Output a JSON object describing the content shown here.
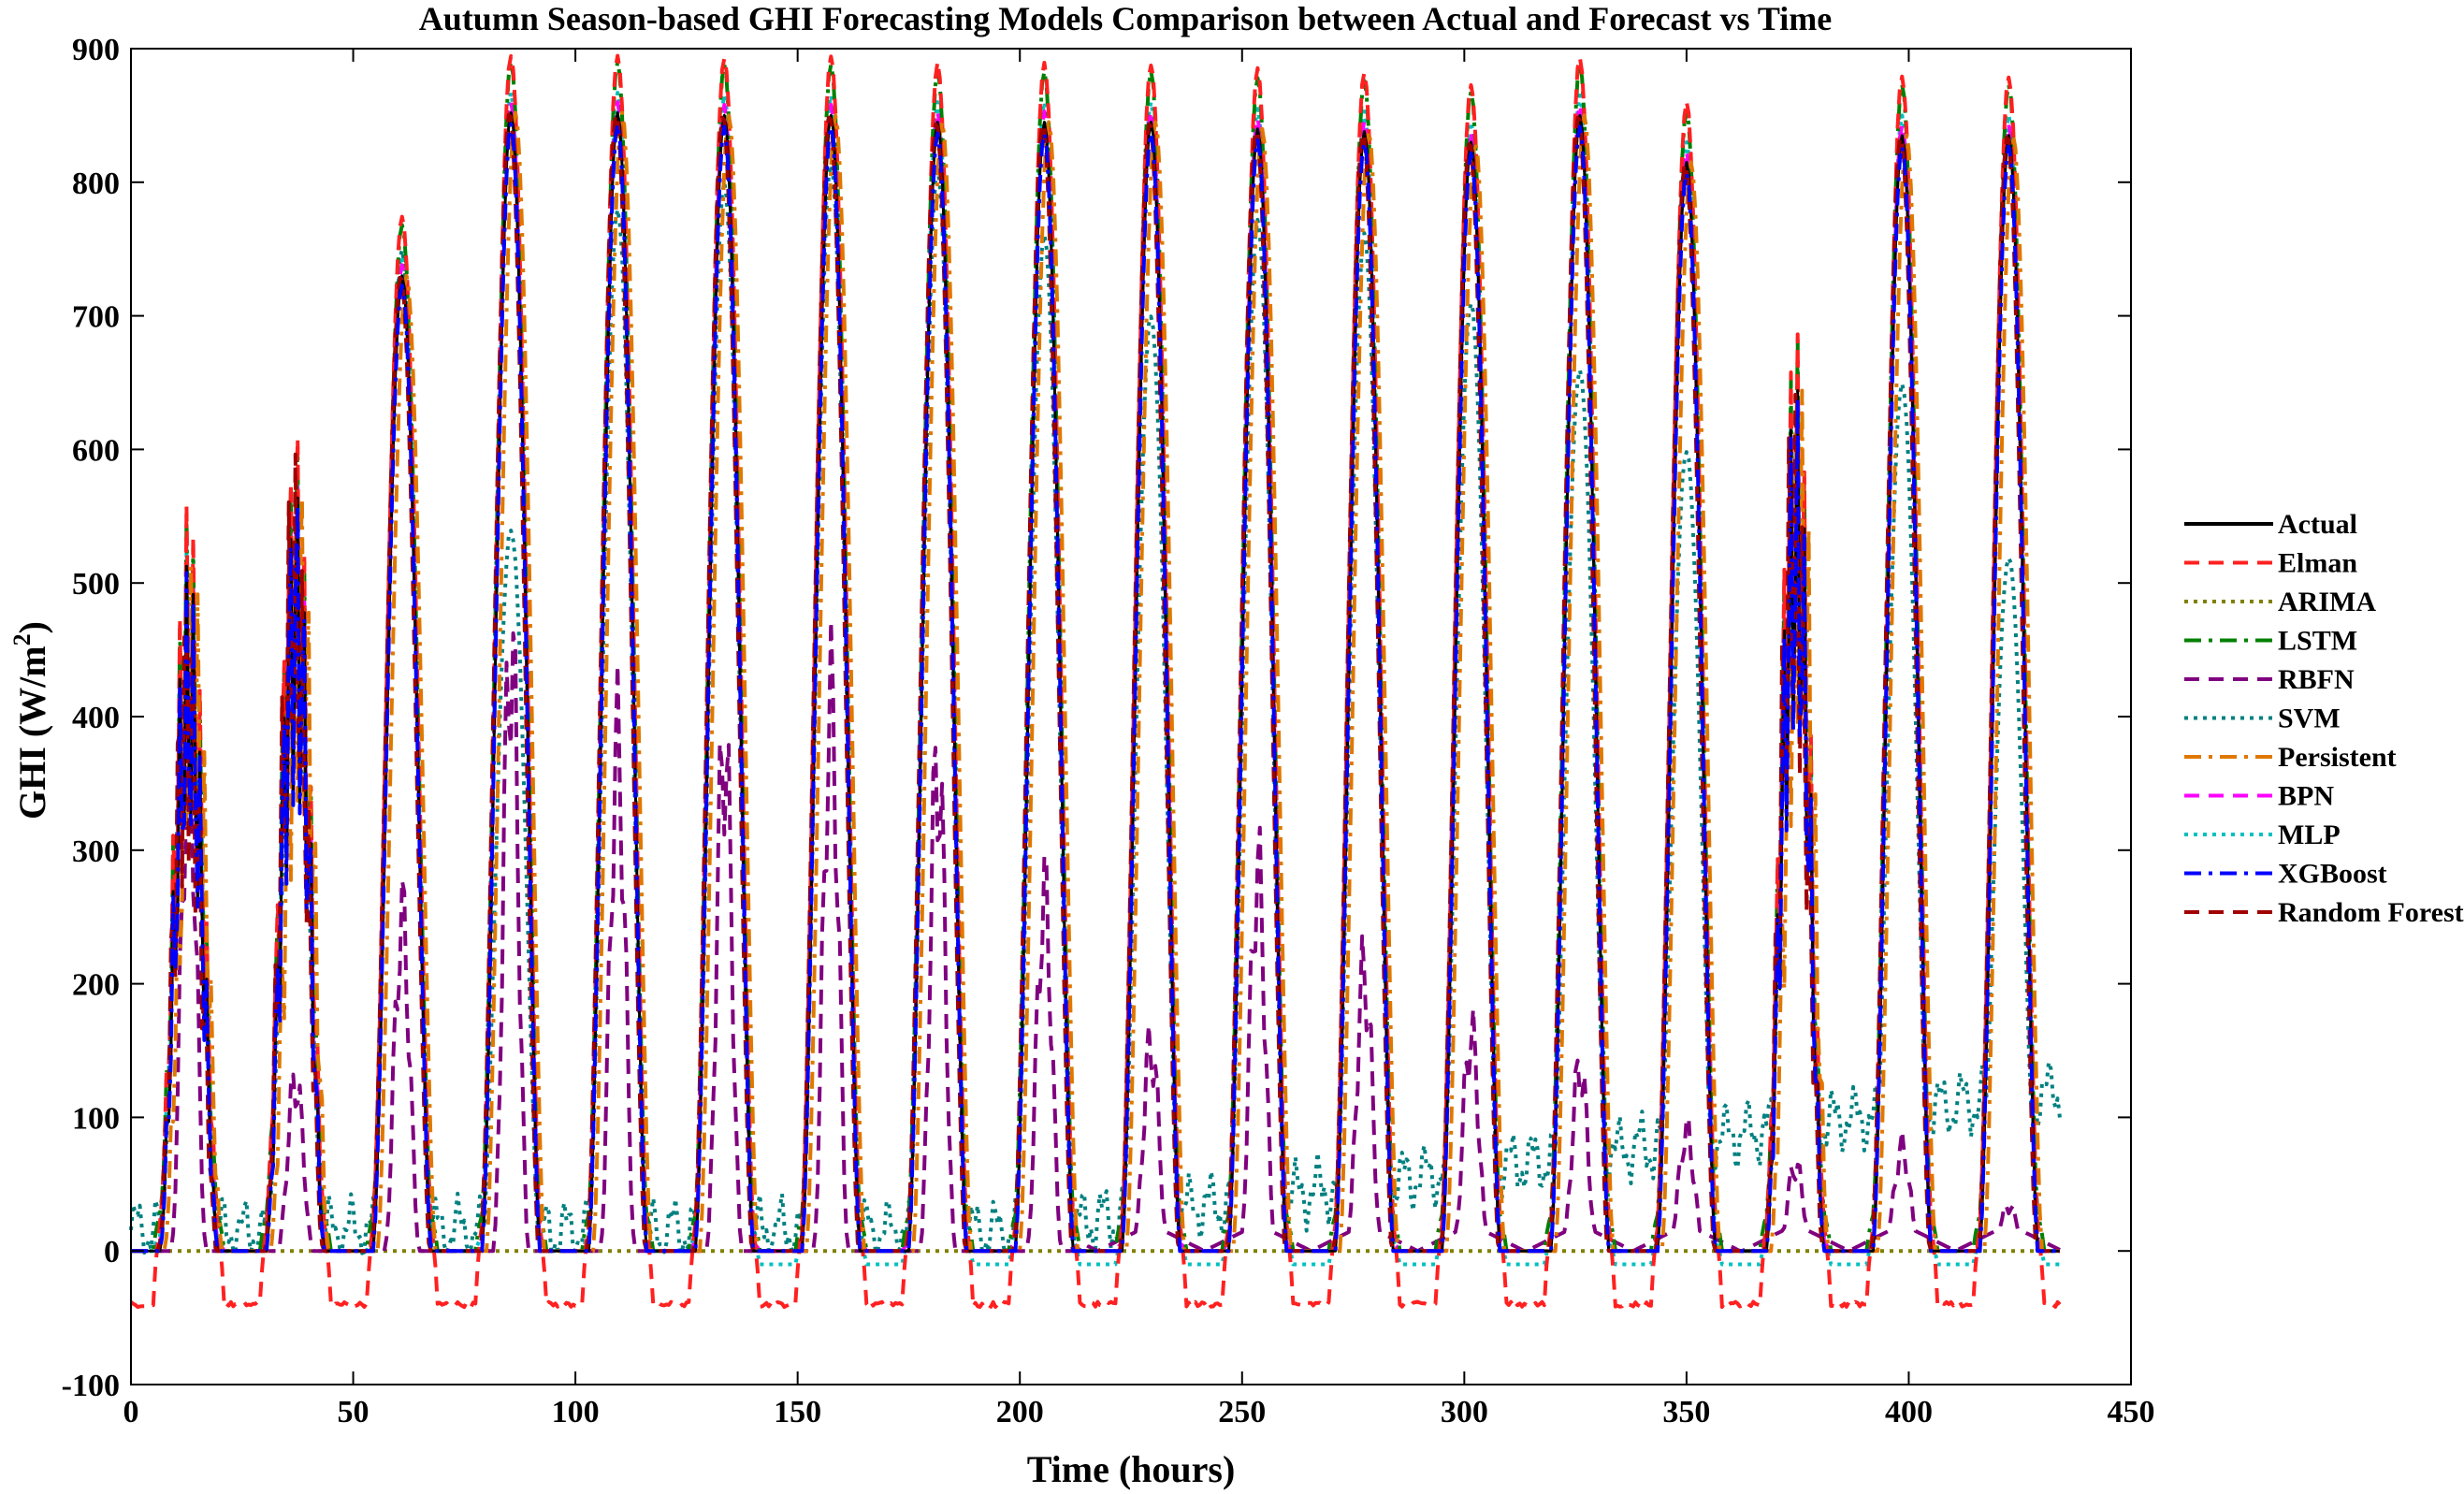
{
  "chart_data": {
    "type": "line",
    "title": "Autumn Season-based GHI Forecasting Models Comparison between Actual and Forecast vs Time",
    "xlabel": "Time (hours)",
    "ylabel_main": "GHI (W/m",
    "ylabel_sup": "2",
    "ylabel_close": ")",
    "xlim": [
      0,
      450
    ],
    "ylim": [
      -100,
      900
    ],
    "xticks": [
      0,
      50,
      100,
      150,
      200,
      250,
      300,
      350,
      400,
      450
    ],
    "yticks": [
      -100,
      0,
      100,
      200,
      300,
      400,
      500,
      600,
      700,
      800,
      900
    ],
    "grid": false,
    "legend_position": "right",
    "days": [
      {
        "center": 13,
        "peak": 520,
        "cloudy": true
      },
      {
        "center": 37,
        "peak": 600,
        "cloudy": true
      },
      {
        "center": 61,
        "peak": 730,
        "cloudy": false
      },
      {
        "center": 85.5,
        "peak": 852,
        "cloudy": false
      },
      {
        "center": 109.5,
        "peak": 852,
        "cloudy": false
      },
      {
        "center": 133.5,
        "peak": 850,
        "cloudy": false
      },
      {
        "center": 157.5,
        "peak": 850,
        "cloudy": false
      },
      {
        "center": 181.5,
        "peak": 845,
        "cloudy": false
      },
      {
        "center": 205.5,
        "peak": 845,
        "cloudy": false
      },
      {
        "center": 229.5,
        "peak": 845,
        "cloudy": false
      },
      {
        "center": 253.5,
        "peak": 840,
        "cloudy": false
      },
      {
        "center": 277.5,
        "peak": 838,
        "cloudy": false
      },
      {
        "center": 301.5,
        "peak": 830,
        "cloudy": false
      },
      {
        "center": 326,
        "peak": 850,
        "cloudy": false
      },
      {
        "center": 350,
        "peak": 815,
        "cloudy": false
      },
      {
        "center": 374.5,
        "peak": 660,
        "cloudy": true
      },
      {
        "center": 398.5,
        "peak": 835,
        "cloudy": false
      },
      {
        "center": 422.5,
        "peak": 835,
        "cloudy": false
      }
    ],
    "series": [
      {
        "name": "Actual",
        "color": "#000000",
        "dash": "solid"
      },
      {
        "name": "Elman",
        "color": "#ff2020",
        "dash": "dash"
      },
      {
        "name": "ARIMA",
        "color": "#808000",
        "dash": "dot"
      },
      {
        "name": "LSTM",
        "color": "#008000",
        "dash": "dashdot"
      },
      {
        "name": "RBFN",
        "color": "#800080",
        "dash": "dash"
      },
      {
        "name": "SVM",
        "color": "#008080",
        "dash": "dot"
      },
      {
        "name": "Persistent",
        "color": "#e07800",
        "dash": "dashdot"
      },
      {
        "name": "BPN",
        "color": "#ff00ff",
        "dash": "dash"
      },
      {
        "name": "MLP",
        "color": "#00c0c0",
        "dash": "dot"
      },
      {
        "name": "XGBoost",
        "color": "#0000ff",
        "dash": "dashdot"
      },
      {
        "name": "Random Forest",
        "color": "#a00000",
        "dash": "dash"
      }
    ]
  }
}
